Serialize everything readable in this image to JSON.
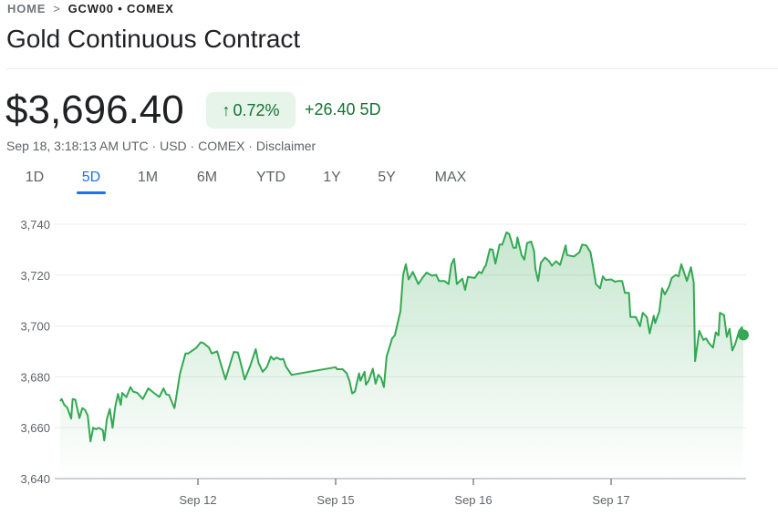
{
  "breadcrumb": {
    "home": "HOME",
    "current": "GCW00 • COMEX"
  },
  "title": "Gold Continuous Contract",
  "price": "$3,696.40",
  "change_badge": {
    "arrow": "↑",
    "percent": "0.72%"
  },
  "change_abs": "+26.40 5D",
  "subline": "Sep 18, 3:18:13 AM UTC · USD · COMEX · Disclaimer",
  "tabs": [
    {
      "label": "1D"
    },
    {
      "label": "5D",
      "active": true
    },
    {
      "label": "1M"
    },
    {
      "label": "6M"
    },
    {
      "label": "YTD"
    },
    {
      "label": "1Y"
    },
    {
      "label": "5Y"
    },
    {
      "label": "MAX"
    }
  ],
  "colors": {
    "up": "#34a853",
    "up_text": "#137333",
    "badge_bg": "#e6f4ea",
    "active_tab": "#1a73e8"
  },
  "chart_data": {
    "type": "area",
    "ylim": [
      3640,
      3740
    ],
    "yticks": [
      3740,
      3720,
      3700,
      3680,
      3660,
      3640
    ],
    "ytick_labels": [
      "3,740",
      "3,720",
      "3,700",
      "3,680",
      "3,660",
      "3,640"
    ],
    "xticks": [
      {
        "label": "Sep 12",
        "x": 1
      },
      {
        "label": "Sep 15",
        "x": 2
      },
      {
        "label": "Sep 16",
        "x": 3
      },
      {
        "label": "Sep 17",
        "x": 4
      }
    ],
    "xlim": [
      0,
      4.98
    ],
    "grid": true,
    "points": [
      [
        0,
        3670.5
      ],
      [
        0.01,
        3671.3
      ],
      [
        0.03,
        3669
      ],
      [
        0.05,
        3668
      ],
      [
        0.08,
        3663.6
      ],
      [
        0.09,
        3671.3
      ],
      [
        0.11,
        3671
      ],
      [
        0.14,
        3663.8
      ],
      [
        0.16,
        3667.7
      ],
      [
        0.18,
        3667
      ],
      [
        0.2,
        3664.8
      ],
      [
        0.22,
        3654.6
      ],
      [
        0.24,
        3660
      ],
      [
        0.26,
        3659.4
      ],
      [
        0.28,
        3660
      ],
      [
        0.31,
        3659
      ],
      [
        0.32,
        3655
      ],
      [
        0.34,
        3663.6
      ],
      [
        0.36,
        3667.4
      ],
      [
        0.38,
        3660
      ],
      [
        0.4,
        3668.3
      ],
      [
        0.42,
        3673.3
      ],
      [
        0.44,
        3669
      ],
      [
        0.45,
        3673.7
      ],
      [
        0.48,
        3672
      ],
      [
        0.51,
        3676
      ],
      [
        0.53,
        3674.2
      ],
      [
        0.56,
        3673.7
      ],
      [
        0.6,
        3671.3
      ],
      [
        0.64,
        3675.5
      ],
      [
        0.68,
        3673.7
      ],
      [
        0.72,
        3672.1
      ],
      [
        0.75,
        3675.5
      ],
      [
        0.77,
        3673.1
      ],
      [
        0.79,
        3672.9
      ],
      [
        0.82,
        3669
      ],
      [
        0.83,
        3667.7
      ],
      [
        0.87,
        3681.4
      ],
      [
        0.91,
        3689.2
      ],
      [
        0.93,
        3689.2
      ],
      [
        0.99,
        3691.5
      ],
      [
        1.02,
        3693.6
      ],
      [
        1.04,
        3693.3
      ],
      [
        1.08,
        3691.5
      ],
      [
        1.1,
        3689.2
      ],
      [
        1.14,
        3690
      ],
      [
        1.17,
        3684.4
      ],
      [
        1.2,
        3679
      ],
      [
        1.23,
        3684.4
      ],
      [
        1.26,
        3689.8
      ],
      [
        1.29,
        3689.6
      ],
      [
        1.31,
        3685.6
      ],
      [
        1.34,
        3679
      ],
      [
        1.38,
        3684.4
      ],
      [
        1.42,
        3690.9
      ],
      [
        1.44,
        3685.6
      ],
      [
        1.47,
        3682
      ],
      [
        1.5,
        3683.8
      ],
      [
        1.53,
        3688
      ],
      [
        1.55,
        3686.8
      ],
      [
        1.57,
        3687.6
      ],
      [
        1.6,
        3686.8
      ],
      [
        1.62,
        3687.1
      ],
      [
        1.64,
        3684
      ],
      [
        1.68,
        3680.8
      ],
      [
        2,
        3683.8
      ],
      [
        2.01,
        3683
      ],
      [
        2.05,
        3683
      ],
      [
        2.08,
        3681.4
      ],
      [
        2.1,
        3678.5
      ],
      [
        2.12,
        3673.5
      ],
      [
        2.14,
        3674.2
      ],
      [
        2.17,
        3681.4
      ],
      [
        2.18,
        3678.5
      ],
      [
        2.21,
        3682
      ],
      [
        2.22,
        3676.9
      ],
      [
        2.24,
        3678.5
      ],
      [
        2.27,
        3683.2
      ],
      [
        2.29,
        3677.3
      ],
      [
        2.31,
        3680.8
      ],
      [
        2.33,
        3679.6
      ],
      [
        2.35,
        3676
      ],
      [
        2.37,
        3688
      ],
      [
        2.41,
        3695.1
      ],
      [
        2.43,
        3696.3
      ],
      [
        2.47,
        3705.8
      ],
      [
        2.49,
        3720.1
      ],
      [
        2.51,
        3724.3
      ],
      [
        2.53,
        3718.3
      ],
      [
        2.56,
        3721.3
      ],
      [
        2.6,
        3716.5
      ],
      [
        2.63,
        3718.9
      ],
      [
        2.66,
        3721
      ],
      [
        2.7,
        3719.8
      ],
      [
        2.73,
        3720.1
      ],
      [
        2.75,
        3717.7
      ],
      [
        2.79,
        3717.7
      ],
      [
        2.82,
        3716.5
      ],
      [
        2.84,
        3724.3
      ],
      [
        2.86,
        3726.4
      ],
      [
        2.88,
        3716.5
      ],
      [
        2.92,
        3718.6
      ],
      [
        2.94,
        3714.2
      ],
      [
        2.96,
        3719.3
      ],
      [
        3.01,
        3718.9
      ],
      [
        3.04,
        3721.3
      ],
      [
        3.06,
        3720.7
      ],
      [
        3.08,
        3723.1
      ],
      [
        3.09,
        3723.7
      ],
      [
        3.12,
        3730.2
      ],
      [
        3.14,
        3730
      ],
      [
        3.16,
        3724.5
      ],
      [
        3.19,
        3732
      ],
      [
        3.21,
        3732
      ],
      [
        3.24,
        3736.8
      ],
      [
        3.26,
        3736.2
      ],
      [
        3.29,
        3730.8
      ],
      [
        3.31,
        3730.8
      ],
      [
        3.32,
        3734.8
      ],
      [
        3.35,
        3727.9
      ],
      [
        3.37,
        3726.1
      ],
      [
        3.39,
        3732.6
      ],
      [
        3.42,
        3733.2
      ],
      [
        3.44,
        3729.6
      ],
      [
        3.45,
        3722.5
      ],
      [
        3.47,
        3717.7
      ],
      [
        3.49,
        3724.9
      ],
      [
        3.52,
        3726.9
      ],
      [
        3.55,
        3725.5
      ],
      [
        3.57,
        3723.7
      ],
      [
        3.6,
        3725.5
      ],
      [
        3.63,
        3724
      ],
      [
        3.67,
        3731.7
      ],
      [
        3.68,
        3727.9
      ],
      [
        3.73,
        3727.3
      ],
      [
        3.77,
        3729
      ],
      [
        3.79,
        3732
      ],
      [
        3.82,
        3731.7
      ],
      [
        3.85,
        3729
      ],
      [
        3.87,
        3723.1
      ],
      [
        3.89,
        3716.5
      ],
      [
        3.92,
        3714.8
      ],
      [
        3.94,
        3719.5
      ],
      [
        3.96,
        3718.1
      ],
      [
        4,
        3718.3
      ],
      [
        4.03,
        3717.4
      ],
      [
        4.05,
        3717.7
      ],
      [
        4.08,
        3717.7
      ],
      [
        4.1,
        3713
      ],
      [
        4.13,
        3713
      ],
      [
        4.14,
        3703.5
      ],
      [
        4.18,
        3703.5
      ],
      [
        4.21,
        3699.9
      ],
      [
        4.23,
        3705.2
      ],
      [
        4.26,
        3703.5
      ],
      [
        4.28,
        3697.1
      ],
      [
        4.31,
        3704
      ],
      [
        4.32,
        3701.1
      ],
      [
        4.35,
        3705.8
      ],
      [
        4.37,
        3714.8
      ],
      [
        4.39,
        3712.4
      ],
      [
        4.42,
        3715.4
      ],
      [
        4.44,
        3718.9
      ],
      [
        4.47,
        3720.1
      ],
      [
        4.49,
        3719.5
      ],
      [
        4.51,
        3724.3
      ],
      [
        4.55,
        3717.7
      ],
      [
        4.58,
        3723.1
      ],
      [
        4.6,
        3717.1
      ],
      [
        4.61,
        3686.2
      ],
      [
        4.64,
        3698.1
      ],
      [
        4.67,
        3694.5
      ],
      [
        4.69,
        3695.1
      ],
      [
        4.71,
        3693.3
      ],
      [
        4.74,
        3691.5
      ],
      [
        4.76,
        3697.5
      ],
      [
        4.78,
        3696.3
      ],
      [
        4.79,
        3705.2
      ],
      [
        4.82,
        3704.3
      ],
      [
        4.84,
        3695.7
      ],
      [
        4.86,
        3698.9
      ],
      [
        4.88,
        3690.4
      ],
      [
        4.9,
        3692.7
      ],
      [
        4.93,
        3698.1
      ],
      [
        4.95,
        3699.5
      ],
      [
        4.96,
        3696.5
      ]
    ]
  }
}
